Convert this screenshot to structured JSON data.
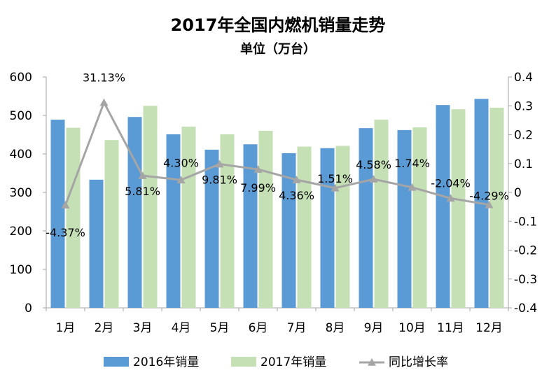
{
  "chart_data": {
    "type": "bar",
    "title": "2017年全国内燃机销量走势",
    "subtitle": "单位（万台）",
    "categories": [
      "1月",
      "2月",
      "3月",
      "4月",
      "5月",
      "6月",
      "7月",
      "8月",
      "9月",
      "10月",
      "11月",
      "12月"
    ],
    "series": [
      {
        "name": "2016年销量",
        "type": "bar",
        "axis": "left",
        "color": "#5b9bd5",
        "values": [
          489,
          333,
          496,
          451,
          411,
          425,
          402,
          415,
          467,
          462,
          527,
          543
        ]
      },
      {
        "name": "2017年销量",
        "type": "bar",
        "axis": "left",
        "color": "#c5e0b4",
        "values": [
          468,
          436,
          525,
          471,
          451,
          460,
          419,
          421,
          489,
          469,
          516,
          520
        ]
      },
      {
        "name": "同比增长率",
        "type": "line",
        "axis": "right",
        "color": "#a5a5a5",
        "marker": "triangle",
        "values": [
          -0.0437,
          0.3113,
          0.0581,
          0.043,
          0.0981,
          0.0799,
          0.0436,
          0.0151,
          0.0458,
          0.0174,
          -0.0204,
          -0.0429
        ],
        "labels": [
          "-4.37%",
          "31.13%",
          "5.81%",
          "4.30%",
          "9.81%",
          "7.99%",
          "4.36%",
          "1.51%",
          "4.58%",
          "1.74%",
          "-2.04%",
          "-4.29%"
        ]
      }
    ],
    "y_left": {
      "min": 0,
      "max": 600,
      "ticks": [
        "0",
        "100",
        "200",
        "300",
        "400",
        "500",
        "600"
      ]
    },
    "y_right": {
      "min": -0.4,
      "max": 0.4,
      "ticks": [
        "-0.4",
        "-0.3",
        "-0.2",
        "-0.1",
        "0",
        "0.1",
        "0.2",
        "0.3",
        "0.4"
      ]
    },
    "grid": false,
    "legend_position": "bottom"
  }
}
